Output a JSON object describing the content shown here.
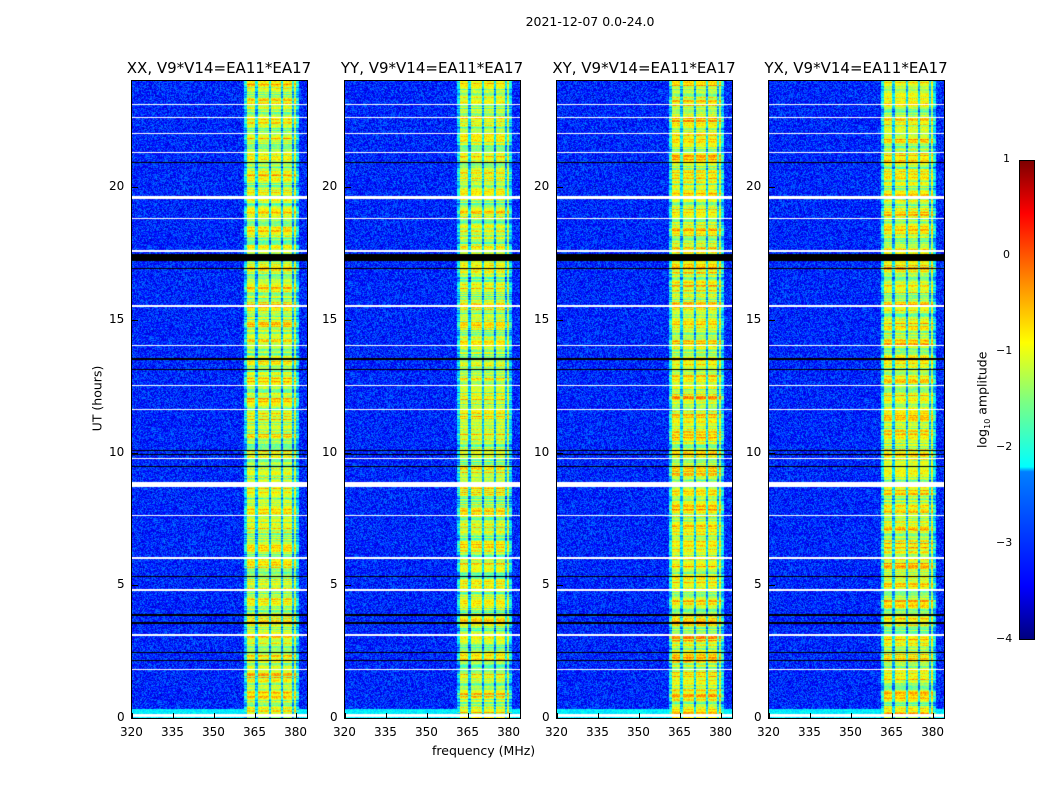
{
  "suptitle": "2021-12-07 0.0-24.0",
  "ylabel": "UT (hours)",
  "xlabel": "frequency (MHz)",
  "colorbar": {
    "label_prefix": "log",
    "label_sub": "10",
    "label_suffix": " amplitude",
    "ticks": [
      "1",
      "0",
      "−1",
      "−2",
      "−3",
      "−4"
    ],
    "range": [
      -4,
      1
    ],
    "colormap": "jet"
  },
  "chart_data": {
    "type": "heatmap",
    "x_range": [
      320,
      384
    ],
    "y_range": [
      0,
      24
    ],
    "xticks": [
      320,
      335,
      350,
      365,
      380
    ],
    "yticks": [
      0,
      5,
      10,
      15,
      20
    ],
    "background_level": -3.2,
    "rfi_band_mhz": [
      361,
      381
    ],
    "rfi_level": -0.6,
    "flagged_hours_white": [
      [
        0.05,
        0.15
      ],
      [
        8.7,
        8.9
      ],
      [
        17.55,
        17.65
      ],
      [
        19.55,
        19.65
      ],
      [
        9.75,
        9.8
      ],
      [
        22.0,
        22.05
      ],
      [
        22.6,
        22.65
      ],
      [
        18.8,
        18.85
      ],
      [
        15.5,
        15.55
      ],
      [
        14.0,
        14.05
      ],
      [
        12.5,
        12.55
      ],
      [
        11.6,
        11.65
      ],
      [
        7.6,
        7.65
      ],
      [
        6.0,
        6.05
      ],
      [
        4.8,
        4.85
      ],
      [
        3.1,
        3.15
      ],
      [
        1.8,
        1.85
      ],
      [
        21.3,
        21.33
      ],
      [
        23.1,
        23.15
      ]
    ],
    "flagged_hours_black": [
      [
        17.2,
        17.5
      ],
      [
        9.9,
        9.95
      ],
      [
        9.45,
        9.5
      ],
      [
        3.85,
        3.9
      ],
      [
        3.55,
        3.6
      ],
      [
        2.45,
        2.5
      ],
      [
        2.15,
        2.2
      ],
      [
        5.3,
        5.35
      ],
      [
        13.5,
        13.55
      ],
      [
        13.1,
        13.15
      ],
      [
        10.05,
        10.1
      ],
      [
        20.9,
        20.95
      ],
      [
        16.9,
        16.95
      ]
    ],
    "panels": [
      {
        "title": "XX, V9*V14=EA11*EA17",
        "gain": 1.0
      },
      {
        "title": "YY, V9*V14=EA11*EA17",
        "gain": 1.05
      },
      {
        "title": "XY, V9*V14=EA11*EA17",
        "gain": 0.8
      },
      {
        "title": "YX, V9*V14=EA11*EA17",
        "gain": 0.85
      }
    ]
  }
}
